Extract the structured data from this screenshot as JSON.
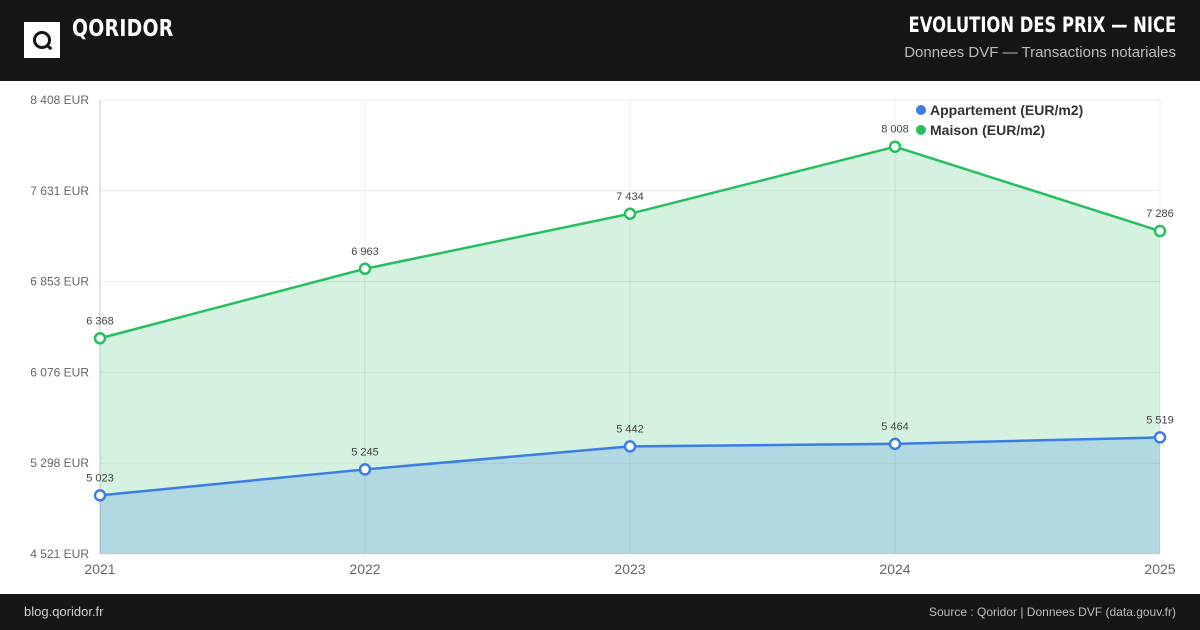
{
  "header": {
    "brand": "QORIDOR",
    "title": "EVOLUTION DES PRIX — NICE",
    "subtitle": "Donnees DVF — Transactions notariales"
  },
  "footer": {
    "site": "blog.qoridor.fr",
    "source": "Source : Qoridor | Donnees DVF (data.gouv.fr)"
  },
  "chart_data": {
    "type": "area",
    "title": "EVOLUTION DES PRIX — NICE",
    "subtitle": "Donnees DVF — Transactions notariales",
    "xlabel": "",
    "ylabel": "",
    "categories": [
      "2021",
      "2022",
      "2023",
      "2024",
      "2025"
    ],
    "ylim": [
      4521,
      8408
    ],
    "yticks": [
      4521,
      5298,
      6076,
      6853,
      7631,
      8408
    ],
    "ytick_labels": [
      "4 521 EUR",
      "5 298 EUR",
      "6 076 EUR",
      "6 853 EUR",
      "7 631 EUR",
      "8 408 EUR"
    ],
    "grid": true,
    "legend_position": "top-right",
    "series": [
      {
        "name": "Appartement (EUR/m2)",
        "color": "#3b7de6",
        "values": [
          5023,
          5245,
          5442,
          5464,
          5519
        ],
        "labels": [
          "5 023",
          "5 245",
          "5 442",
          "5 464",
          "5 519"
        ]
      },
      {
        "name": "Maison (EUR/m2)",
        "color": "#26bf5f",
        "values": [
          6368,
          6963,
          7434,
          8008,
          7286
        ],
        "labels": [
          "6 368",
          "6 963",
          "7 434",
          "8 008",
          "7 286"
        ]
      }
    ]
  }
}
